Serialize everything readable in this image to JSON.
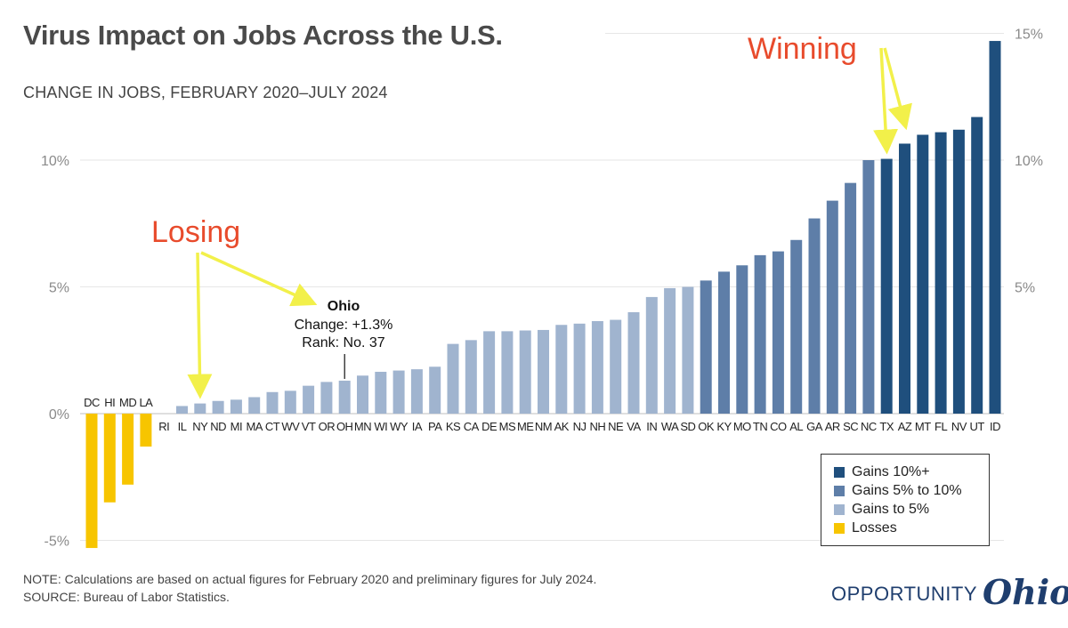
{
  "header": {
    "title": "Virus Impact on Jobs Across the U.S.",
    "subtitle": "CHANGE IN JOBS, FEBRUARY 2020–JULY 2024"
  },
  "footer": {
    "note": "NOTE: Calculations are based on actual figures for February 2020 and preliminary figures for July 2024.",
    "source": "SOURCE: Bureau of Labor Statistics."
  },
  "brand": {
    "word": "OPPORTUNITY",
    "script": "Ohio"
  },
  "colors": {
    "gains10": "#1f4f7d",
    "gains5to10": "#5e7ea8",
    "gains0to5": "#a0b4cf",
    "losses": "#f7c500",
    "annotation": "#e84b2c",
    "arrow": "#f2f04a"
  },
  "legend": [
    {
      "label": "Gains 10%+",
      "color": "#1f4f7d"
    },
    {
      "label": "Gains 5% to 10%",
      "color": "#5e7ea8"
    },
    {
      "label": "Gains to 5%",
      "color": "#a0b4cf"
    },
    {
      "label": "Losses",
      "color": "#f7c500"
    }
  ],
  "annotations": {
    "losing": "Losing",
    "winning": "Winning",
    "ohio_title": "Ohio",
    "ohio_change": "Change: +1.3%",
    "ohio_rank": "Rank: No. 37"
  },
  "chart_data": {
    "type": "bar",
    "title": "Virus Impact on Jobs Across the U.S.",
    "subtitle": "CHANGE IN JOBS, FEBRUARY 2020–JULY 2024",
    "xlabel": "",
    "ylabel": "",
    "ylim": [
      -5.5,
      15
    ],
    "ticks": [
      {
        "value": -5,
        "label": "-5%"
      },
      {
        "value": 0,
        "label": "0%"
      },
      {
        "value": 5,
        "label": "5%"
      },
      {
        "value": 10,
        "label": "10%"
      },
      {
        "value": 15,
        "label": "15%"
      }
    ],
    "grid": true,
    "legend_position": "bottom-right",
    "categories": [
      "DC",
      "HI",
      "MD",
      "LA",
      "RI",
      "IL",
      "NY",
      "ND",
      "MI",
      "MA",
      "CT",
      "WV",
      "VT",
      "OR",
      "OH",
      "MN",
      "WI",
      "WY",
      "IA",
      "PA",
      "KS",
      "CA",
      "DE",
      "MS",
      "ME",
      "NM",
      "AK",
      "NJ",
      "NH",
      "NE",
      "VA",
      "IN",
      "WA",
      "SD",
      "OK",
      "KY",
      "MO",
      "TN",
      "CO",
      "AL",
      "GA",
      "AR",
      "SC",
      "NC",
      "TX",
      "AZ",
      "MT",
      "FL",
      "NV",
      "UT",
      "ID"
    ],
    "values": [
      -5.3,
      -3.5,
      -2.8,
      -1.3,
      0.0,
      0.3,
      0.4,
      0.5,
      0.55,
      0.65,
      0.85,
      0.9,
      1.1,
      1.25,
      1.3,
      1.5,
      1.65,
      1.7,
      1.75,
      1.85,
      2.75,
      2.9,
      3.25,
      3.25,
      3.28,
      3.3,
      3.5,
      3.55,
      3.65,
      3.7,
      4.0,
      4.6,
      4.95,
      5.0,
      5.25,
      5.6,
      5.85,
      6.25,
      6.4,
      6.85,
      7.7,
      8.4,
      9.1,
      10.0,
      10.05,
      10.65,
      11.0,
      11.1,
      11.2,
      11.7,
      14.7
    ],
    "groups": [
      "losses",
      "losses",
      "losses",
      "losses",
      "gains0to5",
      "gains0to5",
      "gains0to5",
      "gains0to5",
      "gains0to5",
      "gains0to5",
      "gains0to5",
      "gains0to5",
      "gains0to5",
      "gains0to5",
      "gains0to5",
      "gains0to5",
      "gains0to5",
      "gains0to5",
      "gains0to5",
      "gains0to5",
      "gains0to5",
      "gains0to5",
      "gains0to5",
      "gains0to5",
      "gains0to5",
      "gains0to5",
      "gains0to5",
      "gains0to5",
      "gains0to5",
      "gains0to5",
      "gains0to5",
      "gains0to5",
      "gains0to5",
      "gains0to5",
      "gains5to10",
      "gains5to10",
      "gains5to10",
      "gains5to10",
      "gains5to10",
      "gains5to10",
      "gains5to10",
      "gains5to10",
      "gains5to10",
      "gains5to10",
      "gains10",
      "gains10",
      "gains10",
      "gains10",
      "gains10",
      "gains10",
      "gains10"
    ],
    "highlight": {
      "category": "OH",
      "value": 1.3,
      "rank": 37
    }
  }
}
